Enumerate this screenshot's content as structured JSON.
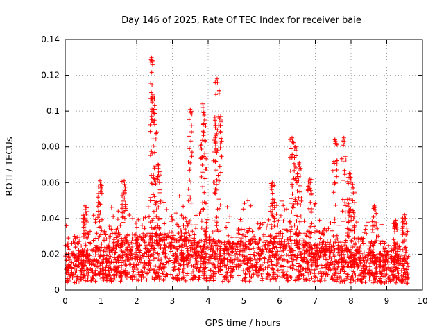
{
  "chart_data": {
    "type": "scatter",
    "title": "Day 146 of 2025, Rate Of TEC Index for receiver baie",
    "xlabel": "GPS time / hours",
    "ylabel": "ROTI / TECUs",
    "xlim": [
      0,
      10
    ],
    "ylim": [
      0,
      0.14
    ],
    "xticks": [
      "0",
      "1",
      "2",
      "3",
      "4",
      "5",
      "6",
      "7",
      "8",
      "9",
      "10"
    ],
    "yticks": [
      "0",
      "0.02",
      "0.04",
      "0.06",
      "0.08",
      "0.1",
      "0.12",
      "0.14"
    ],
    "grid": true,
    "marker": "+",
    "color": "#ff0000",
    "data_extent_hours": [
      0,
      9.6
    ],
    "baseline_envelope": [
      [
        0.0,
        0.014
      ],
      [
        0.5,
        0.016
      ],
      [
        1.0,
        0.017
      ],
      [
        1.5,
        0.019
      ],
      [
        2.0,
        0.021
      ],
      [
        2.5,
        0.022
      ],
      [
        3.0,
        0.021
      ],
      [
        3.5,
        0.02
      ],
      [
        4.0,
        0.02
      ],
      [
        4.5,
        0.019
      ],
      [
        5.0,
        0.019
      ],
      [
        5.5,
        0.02
      ],
      [
        6.0,
        0.021
      ],
      [
        6.5,
        0.02
      ],
      [
        7.0,
        0.019
      ],
      [
        7.5,
        0.018
      ],
      [
        8.0,
        0.016
      ],
      [
        8.5,
        0.015
      ],
      [
        9.0,
        0.014
      ],
      [
        9.6,
        0.013
      ]
    ],
    "peaks": [
      {
        "x": 0.55,
        "y": 0.047
      },
      {
        "x": 0.97,
        "y": 0.061
      },
      {
        "x": 1.65,
        "y": 0.061
      },
      {
        "x": 2.42,
        "y": 0.13
      },
      {
        "x": 2.45,
        "y": 0.109
      },
      {
        "x": 2.5,
        "y": 0.103
      },
      {
        "x": 2.6,
        "y": 0.07
      },
      {
        "x": 3.5,
        "y": 0.101
      },
      {
        "x": 3.85,
        "y": 0.104
      },
      {
        "x": 3.9,
        "y": 0.095
      },
      {
        "x": 4.25,
        "y": 0.118
      },
      {
        "x": 4.35,
        "y": 0.097
      },
      {
        "x": 4.2,
        "y": 0.085
      },
      {
        "x": 5.8,
        "y": 0.06
      },
      {
        "x": 6.35,
        "y": 0.085
      },
      {
        "x": 6.45,
        "y": 0.08
      },
      {
        "x": 6.55,
        "y": 0.071
      },
      {
        "x": 6.85,
        "y": 0.062
      },
      {
        "x": 7.55,
        "y": 0.084
      },
      {
        "x": 7.8,
        "y": 0.085
      },
      {
        "x": 7.95,
        "y": 0.065
      },
      {
        "x": 8.05,
        "y": 0.059
      },
      {
        "x": 8.65,
        "y": 0.047
      },
      {
        "x": 9.25,
        "y": 0.039
      },
      {
        "x": 9.5,
        "y": 0.042
      }
    ]
  }
}
